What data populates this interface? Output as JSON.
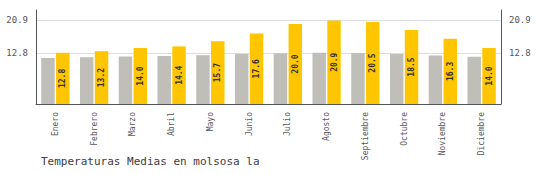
{
  "chart_data": {
    "type": "bar",
    "title": "Temperaturas Medias en molsosa la",
    "categories": [
      "Enero",
      "Febrero",
      "Marzo",
      "Abril",
      "Mayo",
      "Junio",
      "Julio",
      "Agosto",
      "Septiembre",
      "Octubre",
      "Noviembre",
      "Diciembre"
    ],
    "series": [
      {
        "color": "#C0BEB8",
        "values": [
          11.5,
          11.7,
          11.9,
          12.0,
          12.2,
          12.5,
          12.7,
          12.8,
          12.75,
          12.5,
          12.1,
          11.8
        ]
      },
      {
        "color": "#FFC600",
        "values": [
          12.8,
          13.2,
          14.0,
          14.4,
          15.7,
          17.6,
          20.0,
          20.9,
          20.5,
          18.5,
          16.3,
          14.0
        ],
        "value_labels": [
          "12.8",
          "13.2",
          "14.0",
          "14.4",
          "15.7",
          "17.6",
          "20.0",
          "20.9",
          "20.5",
          "18.5",
          "16.3",
          "14.0"
        ],
        "data_labels": true
      }
    ],
    "ylim": [
      0,
      23.5
    ],
    "yticks": [
      12.8,
      20.9
    ],
    "y2lim": [
      0,
      23.5
    ],
    "y2ticks": [
      12.8,
      20.9
    ],
    "grid": true
  }
}
